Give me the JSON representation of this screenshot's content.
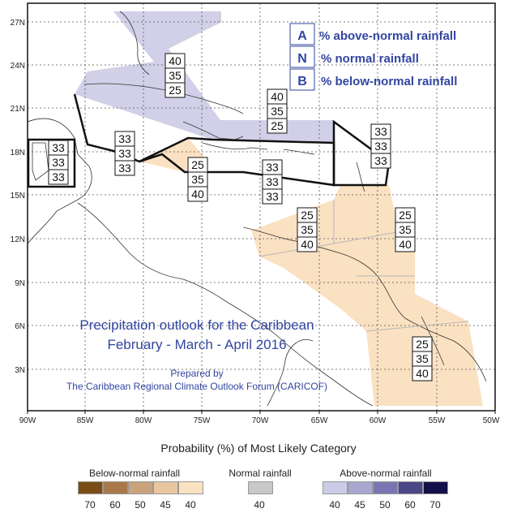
{
  "map": {
    "title_line1": "Precipitation outlook for the Caribbean",
    "title_line2": "February - March - April 2016",
    "prepared_by": "Prepared by",
    "prepared_org": "The Caribbean Regional Climate Outlook Forum (CARICOF)",
    "key": [
      {
        "letter": "A",
        "text": "% above-normal rainfall"
      },
      {
        "letter": "N",
        "text": "% normal rainfall"
      },
      {
        "letter": "B",
        "text": "% below-normal rainfall"
      }
    ],
    "lat_labels": [
      "27N",
      "24N",
      "21N",
      "18N",
      "15N",
      "12N",
      "9N",
      "6N",
      "3N"
    ],
    "lon_labels": [
      "90W",
      "85W",
      "80W",
      "75W",
      "70W",
      "65W",
      "60W",
      "55W",
      "50W"
    ],
    "boxes": [
      {
        "a": "40",
        "n": "35",
        "b": "25"
      },
      {
        "a": "40",
        "n": "35",
        "b": "25"
      },
      {
        "a": "33",
        "n": "33",
        "b": "33"
      },
      {
        "a": "33",
        "n": "33",
        "b": "33"
      },
      {
        "a": "33",
        "n": "33",
        "b": "33"
      },
      {
        "a": "25",
        "n": "35",
        "b": "40"
      },
      {
        "a": "33",
        "n": "33",
        "b": "33"
      },
      {
        "a": "25",
        "n": "35",
        "b": "40"
      },
      {
        "a": "25",
        "n": "35",
        "b": "40"
      },
      {
        "a": "25",
        "n": "35",
        "b": "40"
      }
    ],
    "colors": {
      "above": "#cccbe6",
      "below": "#fae1c2",
      "zone_outline": "#111111",
      "text_blue": "#3245a0"
    }
  },
  "legend": {
    "title": "Probability (%) of Most Likely Category",
    "below": {
      "title": "Below-normal rainfall",
      "values": [
        "70",
        "60",
        "50",
        "45",
        "40"
      ],
      "colors": [
        "#7a4d16",
        "#a8784a",
        "#c9a37b",
        "#e8c6a0",
        "#fae1c2"
      ]
    },
    "normal": {
      "title": "Normal rainfall",
      "values": [
        "40"
      ],
      "colors": [
        "#c8c8c8"
      ]
    },
    "above": {
      "title": "Above-normal rainfall",
      "values": [
        "40",
        "45",
        "50",
        "60",
        "70"
      ],
      "colors": [
        "#cccbe6",
        "#a9a6d0",
        "#7b76b3",
        "#4c4787",
        "#14104a"
      ]
    }
  }
}
